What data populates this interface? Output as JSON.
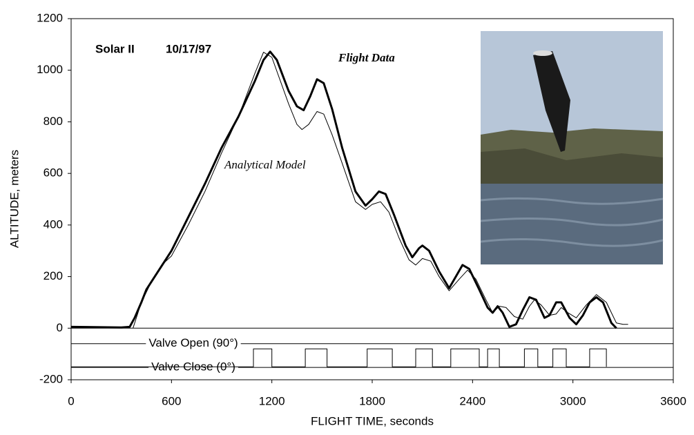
{
  "chart_data": {
    "type": "line",
    "title_parts": [
      "Solar II",
      "10/17/97"
    ],
    "x_label": "FLIGHT TIME, seconds",
    "y_label": "ALTITUDE, meters",
    "xlim": [
      0,
      3600
    ],
    "xticks": [
      0,
      600,
      1200,
      1800,
      2400,
      3000,
      3600
    ],
    "ylim": [
      -200,
      1200
    ],
    "yticks": [
      -200,
      0,
      200,
      400,
      600,
      800,
      1000,
      1200
    ],
    "grid": false,
    "reference_lines": [
      {
        "value": -60,
        "label": "Valve Open (90°)"
      },
      {
        "value": -152,
        "label": "Valve Close (0°)"
      }
    ],
    "series": [
      {
        "name": "Flight Data",
        "color": "#000000",
        "width": 3,
        "x": [
          0,
          300,
          350,
          380,
          420,
          450,
          500,
          600,
          700,
          800,
          900,
          1000,
          1100,
          1150,
          1190,
          1230,
          1300,
          1350,
          1390,
          1430,
          1470,
          1510,
          1560,
          1620,
          1700,
          1760,
          1800,
          1840,
          1880,
          1930,
          2000,
          2040,
          2080,
          2100,
          2140,
          2200,
          2260,
          2300,
          2340,
          2380,
          2440,
          2490,
          2520,
          2550,
          2580,
          2620,
          2660,
          2700,
          2740,
          2780,
          2830,
          2860,
          2900,
          2930,
          2980,
          3020,
          3060,
          3100,
          3140,
          3180,
          3230,
          3260
        ],
        "values": [
          5,
          3,
          5,
          40,
          100,
          150,
          200,
          300,
          430,
          560,
          700,
          820,
          960,
          1040,
          1072,
          1040,
          920,
          860,
          845,
          900,
          965,
          950,
          850,
          700,
          530,
          475,
          500,
          530,
          520,
          440,
          320,
          275,
          310,
          320,
          300,
          220,
          155,
          200,
          245,
          230,
          150,
          80,
          60,
          85,
          60,
          5,
          15,
          70,
          120,
          110,
          40,
          50,
          100,
          100,
          40,
          15,
          50,
          100,
          120,
          100,
          20,
          0
        ]
      },
      {
        "name": "Analytical Model",
        "color": "#000000",
        "width": 1,
        "x": [
          370,
          420,
          480,
          550,
          600,
          700,
          800,
          900,
          1000,
          1100,
          1150,
          1200,
          1250,
          1300,
          1350,
          1380,
          1420,
          1470,
          1510,
          1560,
          1620,
          1700,
          1760,
          1800,
          1850,
          1900,
          1960,
          2020,
          2060,
          2100,
          2150,
          2200,
          2260,
          2320,
          2370,
          2420,
          2480,
          2520,
          2560,
          2600,
          2650,
          2700,
          2740,
          2770,
          2810,
          2860,
          2900,
          2930,
          2970,
          3020,
          3080,
          3140,
          3200,
          3260,
          3300,
          3330
        ],
        "values": [
          0,
          100,
          180,
          250,
          280,
          400,
          530,
          680,
          820,
          990,
          1070,
          1050,
          960,
          870,
          790,
          770,
          790,
          840,
          830,
          750,
          640,
          490,
          460,
          480,
          490,
          450,
          350,
          265,
          245,
          270,
          260,
          200,
          145,
          190,
          225,
          190,
          110,
          60,
          85,
          80,
          45,
          35,
          85,
          110,
          90,
          50,
          55,
          80,
          60,
          40,
          90,
          130,
          100,
          20,
          15,
          15
        ]
      },
      {
        "color": "#000000",
        "width": 1,
        "x": [
          0,
          1090,
          1090,
          1200,
          1200,
          1400,
          1400,
          1530,
          1530,
          1770,
          1770,
          1920,
          1920,
          2060,
          2060,
          2160,
          2160,
          2270,
          2270,
          2440,
          2440,
          2490,
          2490,
          2560,
          2560,
          2710,
          2710,
          2790,
          2790,
          2880,
          2880,
          2960,
          2960,
          3100,
          3100,
          3200,
          3200
        ],
        "values": [
          -150,
          -150,
          -80,
          -80,
          -150,
          -150,
          -80,
          -80,
          -150,
          -150,
          -80,
          -80,
          -150,
          -150,
          -80,
          -80,
          -150,
          -150,
          -80,
          -80,
          -150,
          -150,
          -80,
          -80,
          -150,
          -150,
          -80,
          -80,
          -150,
          -150,
          -80,
          -80,
          -150,
          -150,
          -80,
          -80,
          -150
        ]
      }
    ]
  }
}
